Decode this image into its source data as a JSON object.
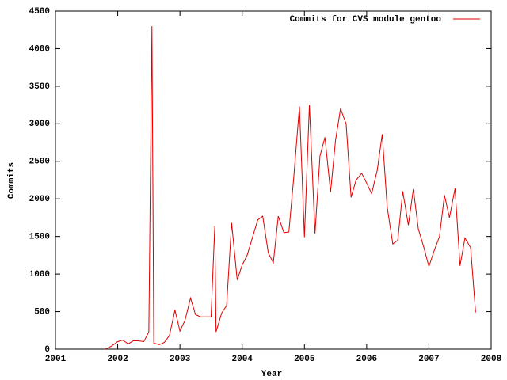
{
  "chart_data": {
    "type": "line",
    "x_label": "Year",
    "y_label": "Commits",
    "xlim": [
      2001,
      2008
    ],
    "ylim": [
      0,
      4500
    ],
    "xticks": [
      2001,
      2002,
      2003,
      2004,
      2005,
      2006,
      2007,
      2008
    ],
    "yticks": [
      0,
      500,
      1000,
      1500,
      2000,
      2500,
      3000,
      3500,
      4000,
      4500
    ],
    "legend": "top right",
    "series": [
      {
        "name": "Commits for CVS module gentoo",
        "color": "#e00000",
        "x": [
          2001.8,
          2001.9,
          2002.0,
          2002.08,
          2002.17,
          2002.25,
          2002.33,
          2002.42,
          2002.5,
          2002.55,
          2002.58,
          2002.67,
          2002.75,
          2002.83,
          2002.92,
          2003.0,
          2003.08,
          2003.17,
          2003.25,
          2003.33,
          2003.42,
          2003.5,
          2003.56,
          2003.58,
          2003.67,
          2003.75,
          2003.83,
          2003.92,
          2004.0,
          2004.08,
          2004.17,
          2004.25,
          2004.33,
          2004.42,
          2004.5,
          2004.58,
          2004.67,
          2004.75,
          2004.83,
          2004.92,
          2005.0,
          2005.08,
          2005.17,
          2005.25,
          2005.33,
          2005.42,
          2005.5,
          2005.58,
          2005.67,
          2005.75,
          2005.83,
          2005.92,
          2006.0,
          2006.08,
          2006.17,
          2006.25,
          2006.33,
          2006.42,
          2006.5,
          2006.58,
          2006.67,
          2006.75,
          2006.83,
          2006.92,
          2007.0,
          2007.08,
          2007.17,
          2007.25,
          2007.33,
          2007.42,
          2007.5,
          2007.58,
          2007.67,
          2007.75
        ],
        "values": [
          0,
          40,
          100,
          120,
          70,
          110,
          110,
          100,
          230,
          4300,
          80,
          60,
          90,
          180,
          520,
          240,
          380,
          680,
          460,
          430,
          430,
          430,
          1640,
          230,
          480,
          580,
          1680,
          920,
          1120,
          1250,
          1500,
          1720,
          1770,
          1280,
          1150,
          1770,
          1550,
          1560,
          2300,
          3230,
          1490,
          3250,
          1540,
          2570,
          2820,
          2090,
          2780,
          3200,
          3000,
          2020,
          2250,
          2340,
          2210,
          2070,
          2380,
          2860,
          1890,
          1400,
          1450,
          2100,
          1650,
          2130,
          1600,
          1350,
          1100,
          1300,
          1500,
          2050,
          1750,
          2140,
          1110,
          1480,
          1350,
          490
        ]
      }
    ]
  }
}
